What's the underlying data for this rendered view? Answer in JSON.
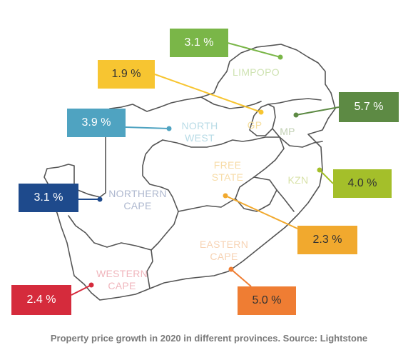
{
  "caption": "Property price growth in 2020 in different provinces. Source: Lightstone",
  "provinces": [
    {
      "key": "limpopo",
      "lines": [
        "LIMPOPO"
      ],
      "color": "#cfe3b3",
      "value": "3.1 %",
      "box_color": "#7ab648",
      "text_color": "#ffffff",
      "line_color": "#7ab648"
    },
    {
      "key": "gp",
      "lines": [
        "GP"
      ],
      "color": "#f5dfa0",
      "value": "1.9 %",
      "box_color": "#f7c531",
      "text_color": "#333333",
      "line_color": "#f7c531"
    },
    {
      "key": "north-west",
      "lines": [
        "NORTH",
        "WEST"
      ],
      "color": "#b8dbe6",
      "value": "3.9 %",
      "box_color": "#4fa3c1",
      "text_color": "#ffffff",
      "line_color": "#4fa3c1"
    },
    {
      "key": "mp",
      "lines": [
        "MP"
      ],
      "color": "#c2d0b4",
      "value": "5.7 %",
      "box_color": "#5d8a44",
      "text_color": "#ffffff",
      "line_color": "#5d8a44"
    },
    {
      "key": "kzn",
      "lines": [
        "KZN"
      ],
      "color": "#d8e2a8",
      "value": "4.0 %",
      "box_color": "#a4bf2a",
      "text_color": "#333333",
      "line_color": "#a4bf2a"
    },
    {
      "key": "free-state",
      "lines": [
        "FREE",
        "STATE"
      ],
      "color": "#f7dca8",
      "value": "2.3 %",
      "box_color": "#f1a92e",
      "text_color": "#333333",
      "line_color": "#f1a92e"
    },
    {
      "key": "northern-cape",
      "lines": [
        "NORTHERN",
        "CAPE"
      ],
      "color": "#aeb8cf",
      "value": "3.1 %",
      "box_color": "#1e4a8c",
      "text_color": "#ffffff",
      "line_color": "#1e4a8c"
    },
    {
      "key": "eastern-cape",
      "lines": [
        "EASTERN",
        "CAPE"
      ],
      "color": "#f7d3b4",
      "value": "5.0 %",
      "box_color": "#ef7d33",
      "text_color": "#333333",
      "line_color": "#ef7d33"
    },
    {
      "key": "western-cape",
      "lines": [
        "WESTERN",
        "CAPE"
      ],
      "color": "#f0b6bd",
      "value": "2.4 %",
      "box_color": "#d52b3c",
      "text_color": "#ffffff",
      "line_color": "#d52b3c"
    }
  ]
}
